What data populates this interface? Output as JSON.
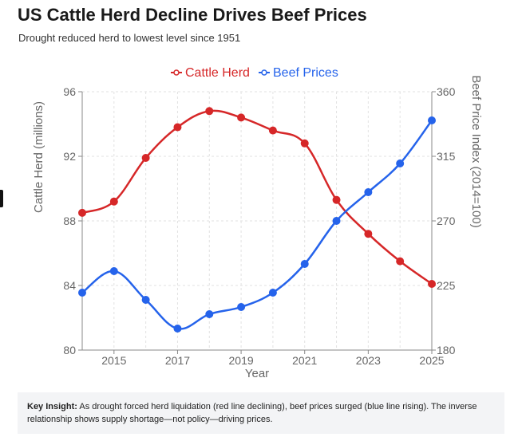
{
  "header": {
    "title": "US Cattle Herd Decline Drives Beef Prices",
    "subtitle": "Drought reduced herd to lowest level since 1951"
  },
  "insight": {
    "label": "Key Insight:",
    "text": "As drought forced herd liquidation (red line declining), beef prices surged (blue line rising). The inverse relationship shows supply shortage—not policy—driving prices."
  },
  "chart_data": {
    "type": "line",
    "x": [
      2014,
      2015,
      2016,
      2017,
      2018,
      2019,
      2020,
      2021,
      2022,
      2023,
      2024,
      2025
    ],
    "xticks": [
      "2015",
      "2017",
      "2019",
      "2021",
      "2023",
      "2025"
    ],
    "xtick_values": [
      2015,
      2017,
      2019,
      2021,
      2023,
      2025
    ],
    "xlim": [
      2014,
      2025
    ],
    "xlabel": "Year",
    "ylabel": "Cattle Herd (millions)",
    "y2label": "Beef Price Index (2014=100)",
    "ylim": [
      80,
      96
    ],
    "y2lim": [
      180,
      360
    ],
    "yticks": [
      "80",
      "84",
      "88",
      "92",
      "96"
    ],
    "ytick_values": [
      80,
      84,
      88,
      92,
      96
    ],
    "y2ticks": [
      "180",
      "225",
      "270",
      "315",
      "360"
    ],
    "y2tick_values": [
      180,
      225,
      270,
      315,
      360
    ],
    "grid": true,
    "legend_position": "top",
    "series": [
      {
        "name": "Cattle Herd",
        "axis": "left",
        "color": "#d62728",
        "values": [
          88.5,
          89.2,
          91.9,
          93.8,
          94.8,
          94.4,
          93.6,
          92.8,
          89.3,
          87.2,
          85.5,
          84.1
        ]
      },
      {
        "name": "Beef Prices",
        "axis": "right",
        "color": "#2563eb",
        "values": [
          220,
          235,
          215,
          195,
          205,
          210,
          220,
          240,
          270,
          290,
          310,
          340
        ]
      }
    ]
  }
}
